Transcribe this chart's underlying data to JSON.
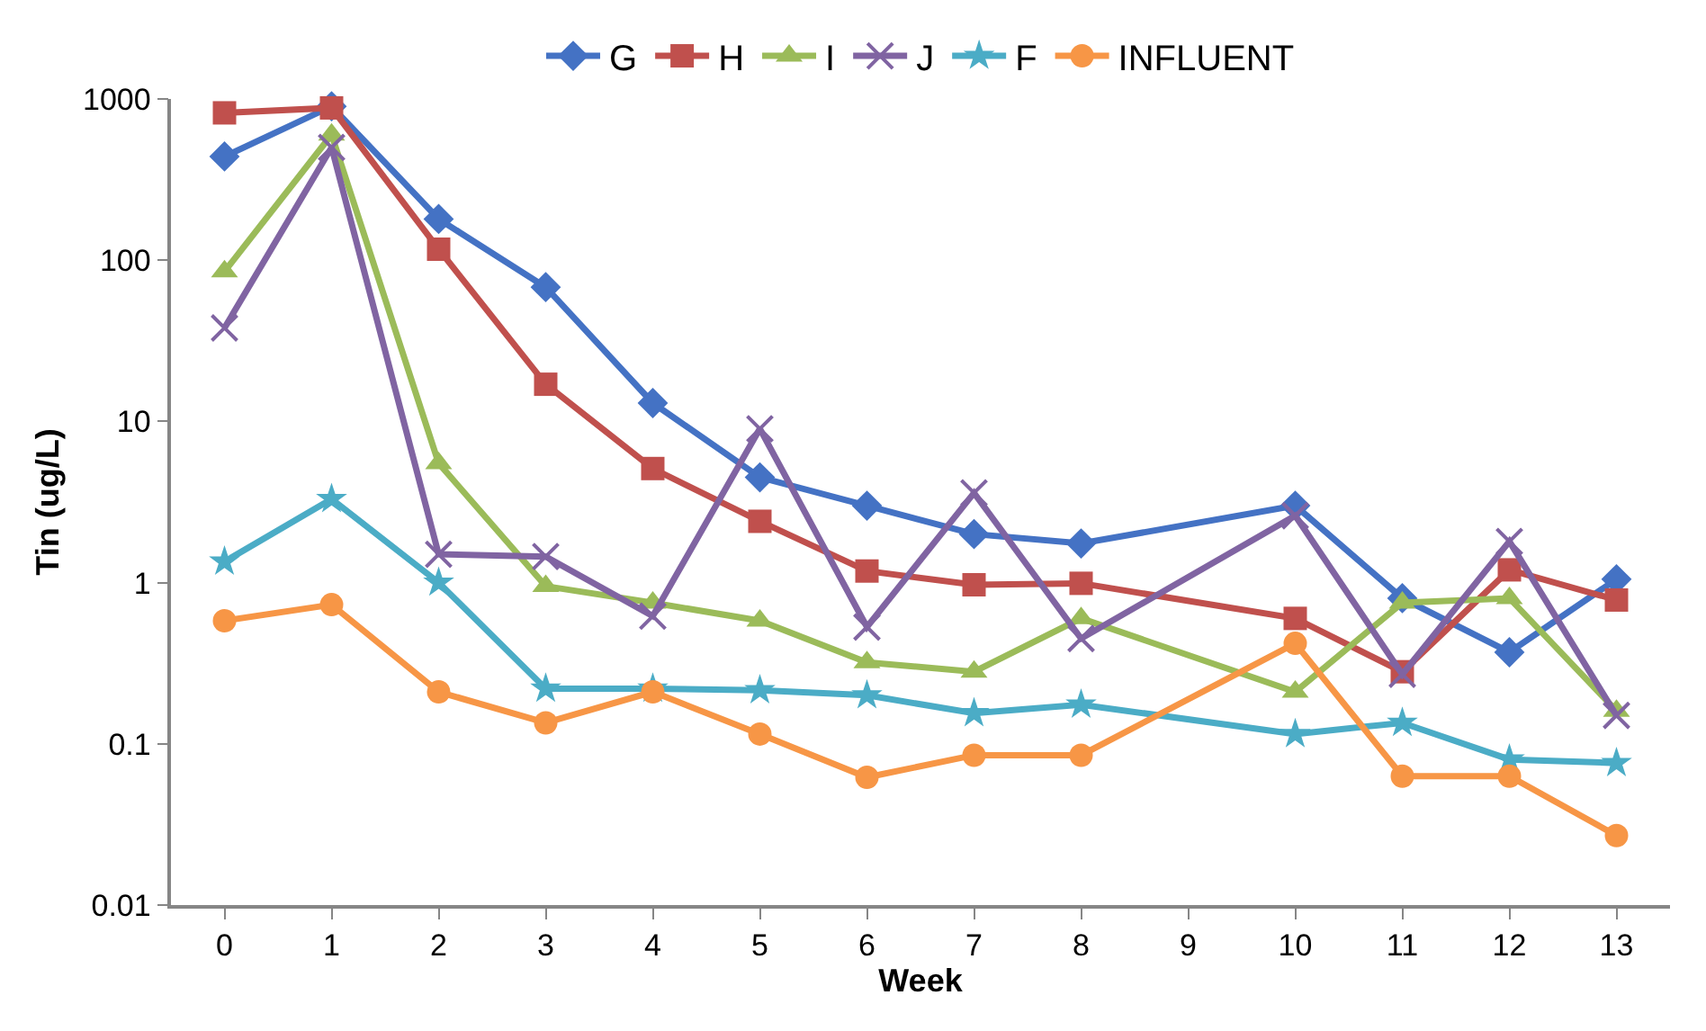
{
  "chart_data": {
    "type": "line",
    "xlabel": "Week",
    "ylabel": "Tin (ug/L)",
    "x": [
      0,
      1,
      2,
      3,
      4,
      5,
      6,
      7,
      8,
      10,
      11,
      12,
      13
    ],
    "xlim": [
      -0.5,
      13.5
    ],
    "xticks": [
      0,
      1,
      2,
      3,
      4,
      5,
      6,
      7,
      8,
      9,
      10,
      11,
      12,
      13
    ],
    "log": true,
    "ylim": [
      0.01,
      1000
    ],
    "yticks": [
      0.01,
      0.1,
      1,
      10,
      100,
      1000
    ],
    "grid": false,
    "legend": "top",
    "line_style": "solid",
    "series": [
      {
        "name": "G",
        "color": "#4472c4",
        "marker": "diamond",
        "values": [
          440,
          900,
          180,
          68,
          13,
          4.5,
          3.0,
          2.0,
          1.75,
          3.0,
          0.8,
          0.37,
          1.05
        ]
      },
      {
        "name": "H",
        "color": "#c0504d",
        "marker": "square",
        "values": [
          820,
          880,
          117,
          17,
          5.1,
          2.4,
          1.18,
          0.97,
          0.99,
          0.6,
          0.28,
          1.2,
          0.78
        ]
      },
      {
        "name": "I",
        "color": "#9bbb59",
        "marker": "triangle",
        "values": [
          85,
          600,
          5.5,
          0.95,
          0.75,
          0.58,
          0.32,
          0.28,
          0.6,
          0.21,
          0.75,
          0.8,
          0.16
        ]
      },
      {
        "name": "J",
        "color": "#8064a2",
        "marker": "cross",
        "values": [
          38,
          500,
          1.5,
          1.45,
          0.62,
          9,
          0.53,
          3.6,
          0.45,
          2.6,
          0.27,
          1.8,
          0.15
        ]
      },
      {
        "name": "F",
        "color": "#4bacc6",
        "marker": "star",
        "values": [
          1.35,
          3.3,
          1.0,
          0.22,
          0.22,
          0.215,
          0.2,
          0.155,
          0.175,
          0.115,
          0.135,
          0.08,
          0.076
        ]
      },
      {
        "name": "INFLUENT",
        "color": "#f79646",
        "marker": "circle",
        "values": [
          0.58,
          0.73,
          0.21,
          0.135,
          0.21,
          0.115,
          0.062,
          0.085,
          0.085,
          0.42,
          0.063,
          0.063,
          0.027
        ]
      }
    ]
  }
}
